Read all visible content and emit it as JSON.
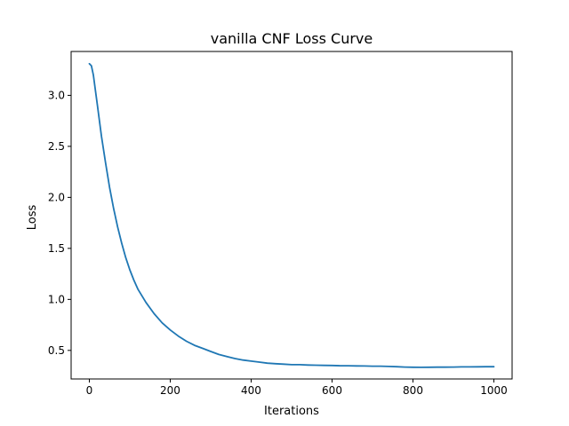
{
  "chart_data": {
    "type": "line",
    "title": "vanilla CNF Loss Curve",
    "xlabel": "Iterations",
    "ylabel": "Loss",
    "xlim": [
      -45,
      1045
    ],
    "ylim": [
      0.22,
      3.43
    ],
    "xticks": [
      0,
      200,
      400,
      600,
      800,
      1000
    ],
    "yticks": [
      0.5,
      1.0,
      1.5,
      2.0,
      2.5,
      3.0
    ],
    "xtick_labels": [
      "0",
      "200",
      "400",
      "600",
      "800",
      "1000"
    ],
    "ytick_labels": [
      "0.5",
      "1.0",
      "1.5",
      "2.0",
      "2.5",
      "3.0"
    ],
    "grid": false,
    "legend": "none",
    "series": [
      {
        "color": "#1f77b4",
        "x": [
          0,
          5,
          10,
          15,
          20,
          30,
          40,
          50,
          60,
          70,
          80,
          90,
          100,
          110,
          120,
          140,
          160,
          180,
          200,
          220,
          240,
          260,
          280,
          300,
          320,
          340,
          360,
          380,
          400,
          420,
          440,
          460,
          480,
          500,
          520,
          540,
          560,
          580,
          600,
          620,
          640,
          660,
          680,
          700,
          720,
          740,
          760,
          780,
          800,
          820,
          840,
          860,
          880,
          900,
          920,
          940,
          960,
          980,
          1000
        ],
        "y": [
          3.31,
          3.29,
          3.2,
          3.05,
          2.9,
          2.6,
          2.34,
          2.1,
          1.89,
          1.71,
          1.55,
          1.41,
          1.29,
          1.19,
          1.1,
          0.97,
          0.86,
          0.77,
          0.7,
          0.64,
          0.59,
          0.55,
          0.52,
          0.49,
          0.46,
          0.44,
          0.42,
          0.405,
          0.395,
          0.385,
          0.375,
          0.37,
          0.365,
          0.36,
          0.36,
          0.357,
          0.355,
          0.353,
          0.352,
          0.35,
          0.35,
          0.348,
          0.347,
          0.345,
          0.345,
          0.343,
          0.34,
          0.337,
          0.335,
          0.334,
          0.335,
          0.336,
          0.336,
          0.337,
          0.338,
          0.338,
          0.339,
          0.34,
          0.34
        ]
      }
    ]
  }
}
